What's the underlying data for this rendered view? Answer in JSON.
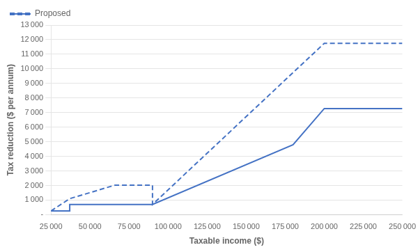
{
  "chart_data": {
    "type": "line",
    "x_label": "Taxable income ($)",
    "y_label": "Tax reduction ($ per annum)",
    "xlim": [
      25000,
      250000
    ],
    "ylim": [
      0,
      13000
    ],
    "xticks": [
      {
        "value": 25000,
        "label": "25 000"
      },
      {
        "value": 50000,
        "label": "50 000"
      },
      {
        "value": 75000,
        "label": "75 000"
      },
      {
        "value": 100000,
        "label": "100 000"
      },
      {
        "value": 125000,
        "label": "125 000"
      },
      {
        "value": 150000,
        "label": "150 000"
      },
      {
        "value": 175000,
        "label": "175 000"
      },
      {
        "value": 200000,
        "label": "200 000"
      },
      {
        "value": 225000,
        "label": "225 000"
      },
      {
        "value": 250000,
        "label": "250 000"
      }
    ],
    "yticks": [
      {
        "value": 0,
        "label": "-"
      },
      {
        "value": 1000,
        "label": "1 000"
      },
      {
        "value": 2000,
        "label": "2 000"
      },
      {
        "value": 3000,
        "label": "3 000"
      },
      {
        "value": 4000,
        "label": "4 000"
      },
      {
        "value": 5000,
        "label": "5 000"
      },
      {
        "value": 6000,
        "label": "6 000"
      },
      {
        "value": 7000,
        "label": "7 000"
      },
      {
        "value": 8000,
        "label": "8 000"
      },
      {
        "value": 9000,
        "label": "9 000"
      },
      {
        "value": 10000,
        "label": "10 000"
      },
      {
        "value": 11000,
        "label": "11 000"
      },
      {
        "value": 12000,
        "label": "12 000"
      },
      {
        "value": 13000,
        "label": "13 000"
      }
    ],
    "grid": "y",
    "legend": "upper left",
    "series": [
      {
        "x": [
          25000,
          37000,
          37000,
          90000,
          90000,
          180000,
          180000,
          200000,
          200000,
          250000
        ],
        "values": [
          255,
          255,
          700,
          700,
          700,
          4800,
          4800,
          7275,
          7275,
          7275
        ],
        "color": "#4472C4",
        "line_style": "solid"
      },
      {
        "name": "Proposed",
        "x": [
          25000,
          37000,
          66000,
          90000,
          90000,
          200000,
          200000,
          250000
        ],
        "values": [
          255,
          1100,
          2025,
          2025,
          700,
          11750,
          11750,
          11750
        ],
        "color": "#4472C4",
        "line_style": "dashed"
      }
    ]
  }
}
